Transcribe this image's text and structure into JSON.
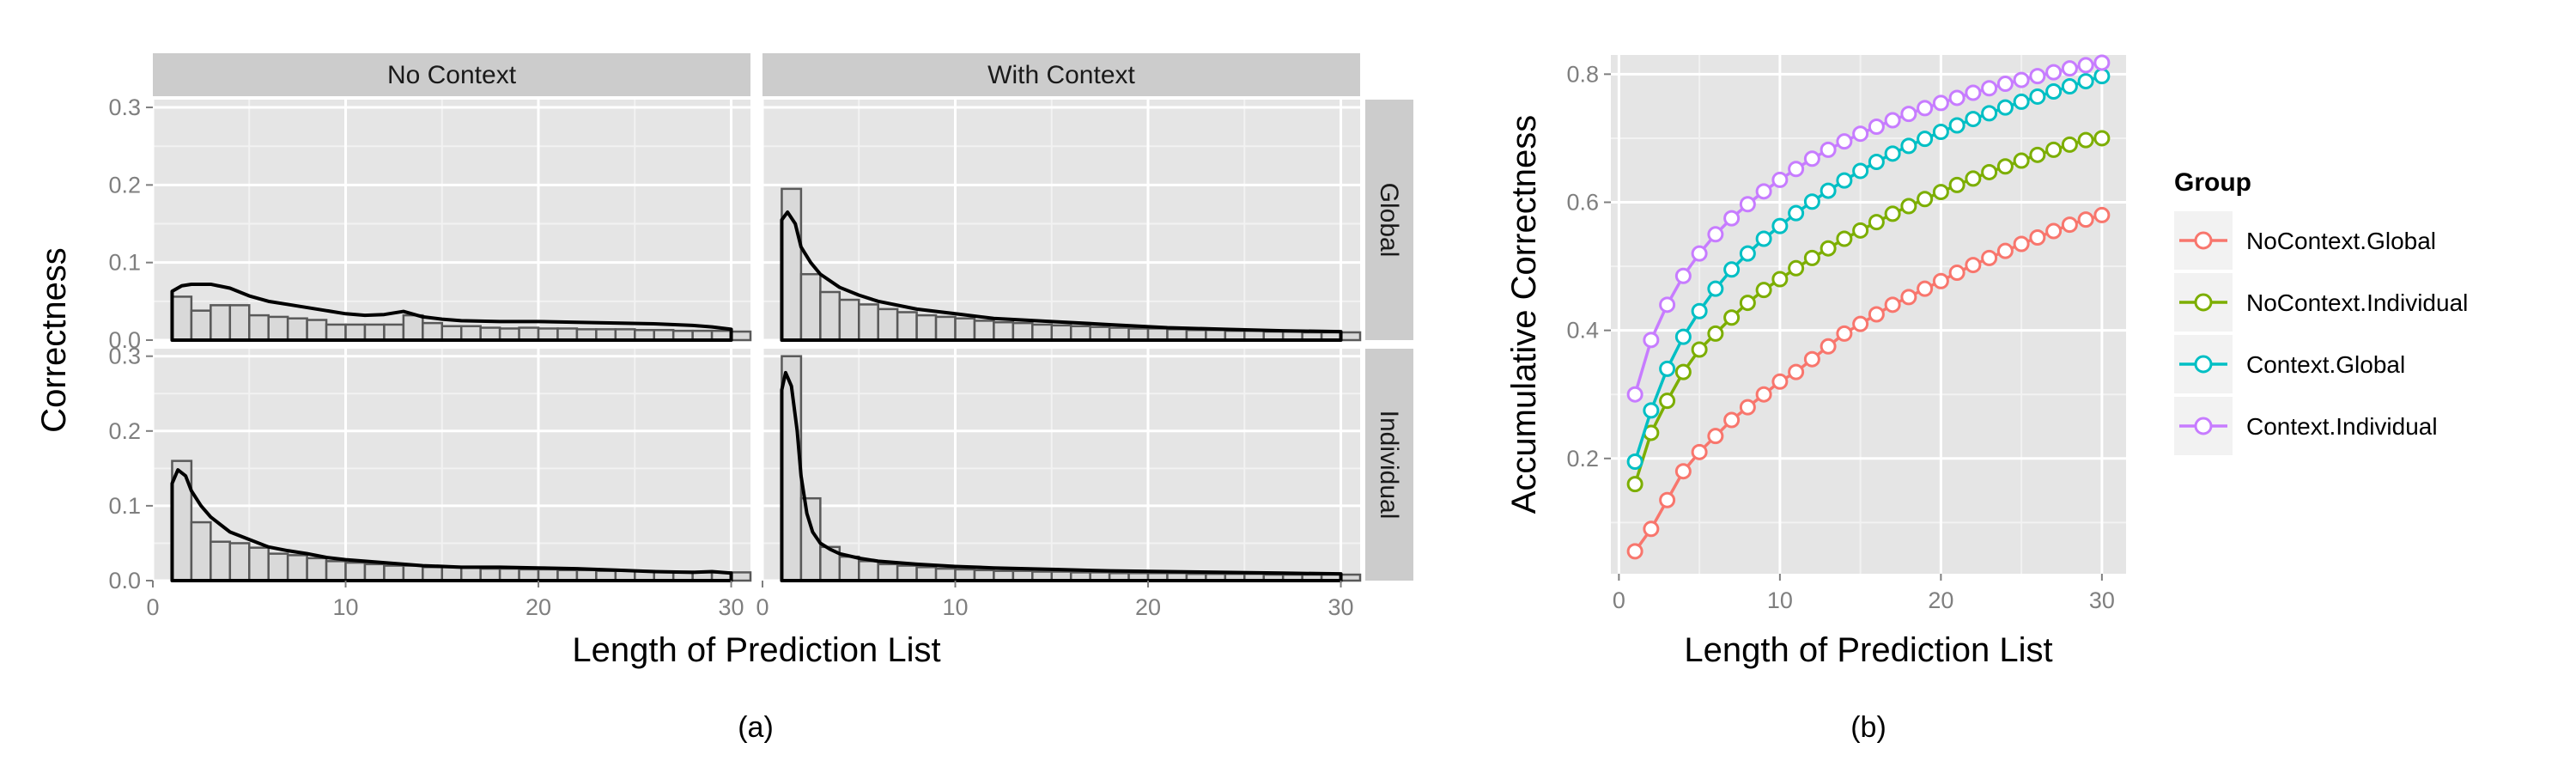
{
  "chart_data": [
    {
      "id": "a",
      "type": "bar",
      "caption": "(a)",
      "xlabel": "Length of Prediction List",
      "ylabel": "Correctness",
      "xlim": [
        0,
        31
      ],
      "ylim": [
        0,
        0.31
      ],
      "x_ticks": [
        "0",
        "10",
        "20",
        "30"
      ],
      "y_ticks": [
        "0.0",
        "0.1",
        "0.2",
        "0.3"
      ],
      "grid": true,
      "col_strips": [
        "No Context",
        "With Context"
      ],
      "row_strips": [
        "Global",
        "Individual"
      ],
      "x": [
        1,
        2,
        3,
        4,
        5,
        6,
        7,
        8,
        9,
        10,
        11,
        12,
        13,
        14,
        15,
        16,
        17,
        18,
        19,
        20,
        21,
        22,
        23,
        24,
        25,
        26,
        27,
        28,
        29,
        30
      ],
      "panels": [
        {
          "col": "No Context",
          "row": "Global",
          "bars": [
            0.056,
            0.038,
            0.045,
            0.045,
            0.032,
            0.03,
            0.028,
            0.026,
            0.02,
            0.02,
            0.02,
            0.02,
            0.032,
            0.022,
            0.018,
            0.018,
            0.016,
            0.015,
            0.016,
            0.015,
            0.015,
            0.014,
            0.014,
            0.014,
            0.013,
            0.013,
            0.012,
            0.012,
            0.012,
            0.011
          ],
          "density_x": [
            1,
            1.5,
            2,
            3,
            4,
            5,
            6,
            7,
            8,
            9,
            10,
            11,
            12,
            13,
            14,
            15,
            16,
            18,
            20,
            22,
            24,
            26,
            28,
            29,
            30
          ],
          "density_y": [
            0.063,
            0.07,
            0.072,
            0.072,
            0.067,
            0.057,
            0.05,
            0.046,
            0.042,
            0.038,
            0.034,
            0.032,
            0.033,
            0.037,
            0.03,
            0.027,
            0.025,
            0.024,
            0.024,
            0.023,
            0.022,
            0.021,
            0.019,
            0.017,
            0.014
          ]
        },
        {
          "col": "With Context",
          "row": "Global",
          "bars": [
            0.195,
            0.085,
            0.062,
            0.052,
            0.046,
            0.04,
            0.036,
            0.032,
            0.03,
            0.028,
            0.025,
            0.023,
            0.022,
            0.02,
            0.019,
            0.018,
            0.017,
            0.016,
            0.015,
            0.015,
            0.014,
            0.013,
            0.013,
            0.012,
            0.012,
            0.011,
            0.011,
            0.01,
            0.01,
            0.01
          ],
          "density_x": [
            1,
            1.3,
            1.7,
            2,
            2.5,
            3,
            4,
            5,
            6,
            8,
            10,
            12,
            15,
            18,
            21,
            24,
            27,
            30
          ],
          "density_y": [
            0.155,
            0.165,
            0.15,
            0.12,
            0.1,
            0.085,
            0.068,
            0.058,
            0.05,
            0.04,
            0.034,
            0.028,
            0.024,
            0.02,
            0.016,
            0.014,
            0.012,
            0.011
          ]
        },
        {
          "col": "No Context",
          "row": "Individual",
          "bars": [
            0.16,
            0.078,
            0.052,
            0.05,
            0.044,
            0.036,
            0.034,
            0.03,
            0.026,
            0.024,
            0.022,
            0.02,
            0.02,
            0.018,
            0.018,
            0.017,
            0.016,
            0.016,
            0.015,
            0.015,
            0.014,
            0.014,
            0.013,
            0.013,
            0.013,
            0.012,
            0.012,
            0.011,
            0.011,
            0.011
          ],
          "density_x": [
            1,
            1.3,
            1.7,
            2,
            2.5,
            3,
            4,
            5,
            6,
            7,
            8,
            9,
            10,
            12,
            14,
            16,
            18,
            20,
            22,
            24,
            26,
            28,
            29,
            30
          ],
          "density_y": [
            0.13,
            0.148,
            0.14,
            0.12,
            0.1,
            0.085,
            0.065,
            0.055,
            0.045,
            0.04,
            0.036,
            0.031,
            0.028,
            0.024,
            0.02,
            0.018,
            0.018,
            0.017,
            0.016,
            0.014,
            0.012,
            0.011,
            0.012,
            0.01
          ]
        },
        {
          "col": "With Context",
          "row": "Individual",
          "bars": [
            0.3,
            0.11,
            0.045,
            0.032,
            0.026,
            0.022,
            0.02,
            0.018,
            0.016,
            0.015,
            0.014,
            0.013,
            0.013,
            0.012,
            0.012,
            0.011,
            0.011,
            0.01,
            0.01,
            0.01,
            0.01,
            0.009,
            0.009,
            0.009,
            0.009,
            0.008,
            0.008,
            0.008,
            0.008,
            0.008
          ],
          "density_x": [
            1,
            1.2,
            1.5,
            1.8,
            2,
            2.3,
            2.6,
            3,
            3.5,
            4,
            5,
            6,
            8,
            10,
            12,
            15,
            18,
            21,
            24,
            27,
            30
          ],
          "density_y": [
            0.255,
            0.278,
            0.26,
            0.2,
            0.14,
            0.09,
            0.065,
            0.05,
            0.042,
            0.036,
            0.03,
            0.026,
            0.022,
            0.019,
            0.017,
            0.015,
            0.013,
            0.012,
            0.011,
            0.01,
            0.009
          ]
        }
      ]
    },
    {
      "id": "b",
      "type": "line",
      "caption": "(b)",
      "xlabel": "Length of Prediction List",
      "ylabel": "Accumulative Correctness",
      "xlim": [
        -0.5,
        31.5
      ],
      "ylim": [
        0.02,
        0.83
      ],
      "x_ticks": [
        "0",
        "10",
        "20",
        "30"
      ],
      "y_ticks": [
        "0.2",
        "0.4",
        "0.6",
        "0.8"
      ],
      "grid": true,
      "legend_title": "Group",
      "legend_position": "right",
      "x": [
        1,
        2,
        3,
        4,
        5,
        6,
        7,
        8,
        9,
        10,
        11,
        12,
        13,
        14,
        15,
        16,
        17,
        18,
        19,
        20,
        21,
        22,
        23,
        24,
        25,
        26,
        27,
        28,
        29,
        30
      ],
      "series": [
        {
          "name": "NoContext.Global",
          "color": "#F8766D",
          "values": [
            0.055,
            0.09,
            0.135,
            0.18,
            0.21,
            0.235,
            0.26,
            0.28,
            0.3,
            0.32,
            0.335,
            0.355,
            0.375,
            0.395,
            0.41,
            0.425,
            0.44,
            0.452,
            0.465,
            0.477,
            0.49,
            0.502,
            0.513,
            0.524,
            0.535,
            0.545,
            0.555,
            0.565,
            0.573,
            0.58
          ]
        },
        {
          "name": "NoContext.Individual",
          "color": "#7CAE00",
          "values": [
            0.16,
            0.24,
            0.29,
            0.335,
            0.37,
            0.395,
            0.42,
            0.443,
            0.463,
            0.48,
            0.497,
            0.513,
            0.528,
            0.543,
            0.556,
            0.569,
            0.582,
            0.594,
            0.605,
            0.616,
            0.627,
            0.637,
            0.647,
            0.656,
            0.665,
            0.674,
            0.682,
            0.69,
            0.697,
            0.7
          ]
        },
        {
          "name": "Context.Global",
          "color": "#00BFC4",
          "values": [
            0.195,
            0.275,
            0.34,
            0.39,
            0.43,
            0.465,
            0.495,
            0.52,
            0.543,
            0.563,
            0.583,
            0.601,
            0.618,
            0.634,
            0.649,
            0.663,
            0.676,
            0.688,
            0.699,
            0.71,
            0.72,
            0.73,
            0.739,
            0.748,
            0.757,
            0.765,
            0.773,
            0.781,
            0.789,
            0.797
          ]
        },
        {
          "name": "Context.Individual",
          "color": "#C77CFF",
          "values": [
            0.3,
            0.385,
            0.44,
            0.485,
            0.52,
            0.55,
            0.575,
            0.597,
            0.617,
            0.635,
            0.652,
            0.668,
            0.682,
            0.695,
            0.707,
            0.718,
            0.728,
            0.738,
            0.747,
            0.755,
            0.763,
            0.771,
            0.778,
            0.785,
            0.791,
            0.797,
            0.803,
            0.809,
            0.814,
            0.818
          ]
        }
      ]
    }
  ]
}
